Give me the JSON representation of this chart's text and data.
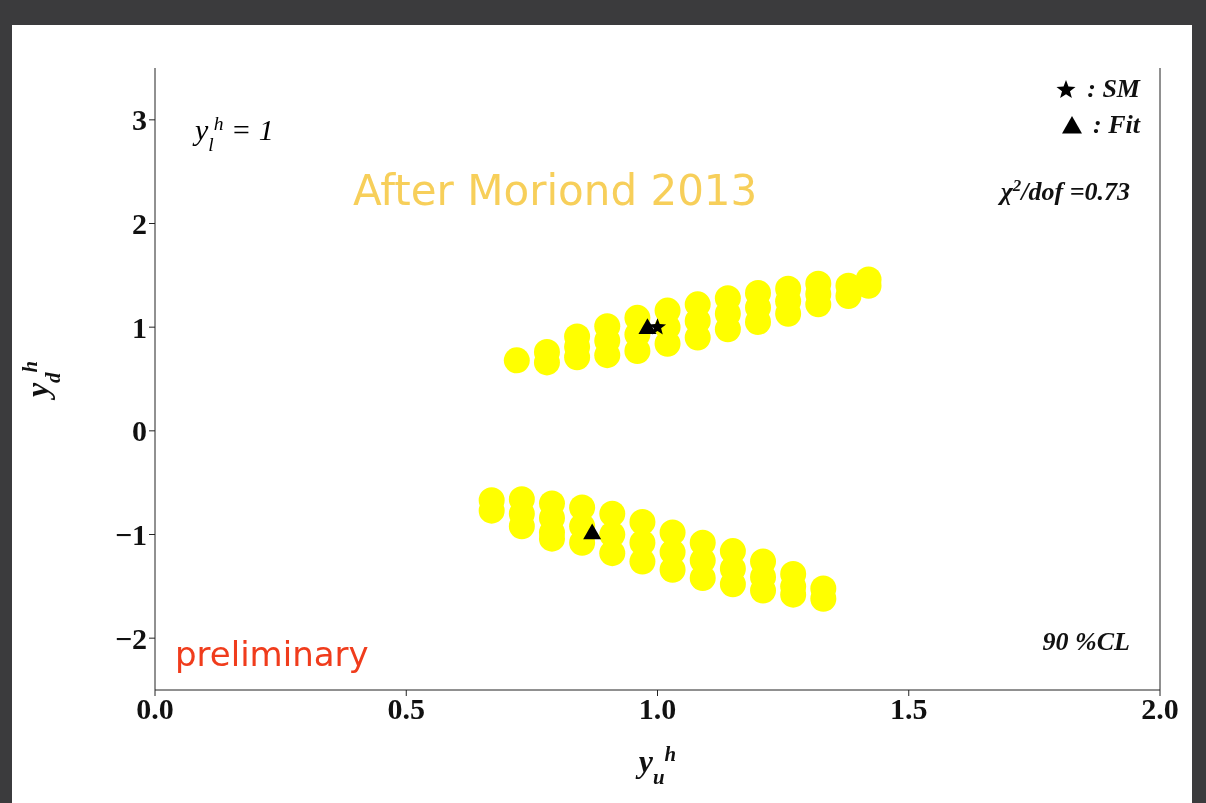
{
  "chart_data": {
    "type": "scatter",
    "xlabel": "y$_{u}$$^{h}$",
    "ylabel": "y$_{d}$$^{h}$",
    "xlim": [
      0,
      2
    ],
    "xticks": [
      {
        "value": 0,
        "label": "0.0"
      },
      {
        "value": 0.5,
        "label": "0.5"
      },
      {
        "value": 1,
        "label": "1.0"
      },
      {
        "value": 1.5,
        "label": "1.5"
      },
      {
        "value": 2,
        "label": "2.0"
      }
    ],
    "ylim": [
      -2.5,
      3.5
    ],
    "yticks": [
      -2,
      -1,
      0,
      1,
      2,
      3
    ],
    "legend": "top right",
    "annotations": [
      "y$_{l}$$^{h}$ = 1",
      "After Moriond 2013",
      "χ$^{2}$/dof =0.73",
      "90 %CL",
      "preliminary"
    ],
    "series": [
      {
        "color": "#ffff00",
        "marker": "circle",
        "x": [
          0.72,
          0.78,
          0.78,
          0.84,
          0.84,
          0.84,
          0.9,
          0.9,
          0.9,
          0.96,
          0.96,
          0.96,
          1.02,
          1.02,
          1.02,
          1.08,
          1.08,
          1.08,
          1.14,
          1.14,
          1.14,
          1.2,
          1.2,
          1.2,
          1.26,
          1.26,
          1.26,
          1.32,
          1.32,
          1.32,
          1.38,
          1.38,
          1.42,
          1.42,
          0.67,
          0.67,
          0.73,
          0.73,
          0.73,
          0.79,
          0.79,
          0.79,
          0.79,
          0.85,
          0.85,
          0.85,
          0.91,
          0.91,
          0.91,
          0.97,
          0.97,
          0.97,
          1.03,
          1.03,
          1.03,
          1.09,
          1.09,
          1.09,
          1.15,
          1.15,
          1.15,
          1.21,
          1.21,
          1.21,
          1.27,
          1.27,
          1.27,
          1.33,
          1.33
        ],
        "values": [
          0.68,
          0.66,
          0.76,
          0.71,
          0.81,
          0.91,
          0.73,
          0.87,
          1.01,
          0.77,
          0.93,
          1.09,
          0.84,
          1.0,
          1.16,
          0.9,
          1.06,
          1.22,
          0.98,
          1.13,
          1.28,
          1.05,
          1.19,
          1.33,
          1.13,
          1.25,
          1.37,
          1.22,
          1.32,
          1.42,
          1.3,
          1.4,
          1.4,
          1.46,
          -0.67,
          -0.77,
          -0.66,
          -0.8,
          -0.92,
          -0.7,
          -0.84,
          -0.98,
          -1.04,
          -0.74,
          -0.92,
          -1.08,
          -0.8,
          -1.0,
          -1.18,
          -0.88,
          -1.08,
          -1.26,
          -0.98,
          -1.17,
          -1.34,
          -1.08,
          -1.25,
          -1.42,
          -1.16,
          -1.33,
          -1.48,
          -1.26,
          -1.41,
          -1.54,
          -1.38,
          -1.5,
          -1.58,
          -1.52,
          -1.62
        ]
      },
      {
        "name": ": Fit",
        "color": "#000000",
        "marker": "triangle",
        "x": [
          0.98,
          0.87
        ],
        "values": [
          1.0,
          -0.98
        ]
      },
      {
        "name": ": SM",
        "color": "#000000",
        "marker": "star",
        "x": [
          1.0
        ],
        "values": [
          1.0
        ]
      }
    ]
  }
}
